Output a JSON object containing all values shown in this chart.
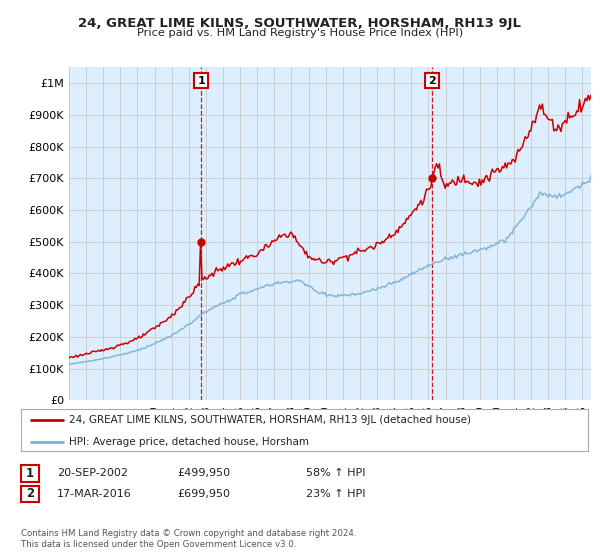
{
  "title": "24, GREAT LIME KILNS, SOUTHWATER, HORSHAM, RH13 9JL",
  "subtitle": "Price paid vs. HM Land Registry's House Price Index (HPI)",
  "red_label": "24, GREAT LIME KILNS, SOUTHWATER, HORSHAM, RH13 9JL (detached house)",
  "blue_label": "HPI: Average price, detached house, Horsham",
  "annotation1": {
    "label": "1",
    "date": "20-SEP-2002",
    "price": "£499,950",
    "change": "58% ↑ HPI"
  },
  "annotation2": {
    "label": "2",
    "date": "17-MAR-2016",
    "price": "£699,950",
    "change": "23% ↑ HPI"
  },
  "footer": "Contains HM Land Registry data © Crown copyright and database right 2024.\nThis data is licensed under the Open Government Licence v3.0.",
  "red_color": "#cc0000",
  "blue_color": "#7ab0d4",
  "vline_color": "#cc0000",
  "grid_color": "#cccccc",
  "plot_bg_color": "#ddeeff",
  "background_color": "#ffffff",
  "ylim": [
    0,
    1050000
  ],
  "yticks": [
    0,
    100000,
    200000,
    300000,
    400000,
    500000,
    600000,
    700000,
    800000,
    900000,
    1000000
  ],
  "ytick_labels": [
    "£0",
    "£100K",
    "£200K",
    "£300K",
    "£400K",
    "£500K",
    "£600K",
    "£700K",
    "£800K",
    "£900K",
    "£1M"
  ],
  "marker1_x": 2002.72,
  "marker1_y": 499950,
  "marker2_x": 2016.21,
  "marker2_y": 699950,
  "xmin": 1995.0,
  "xmax": 2025.5
}
